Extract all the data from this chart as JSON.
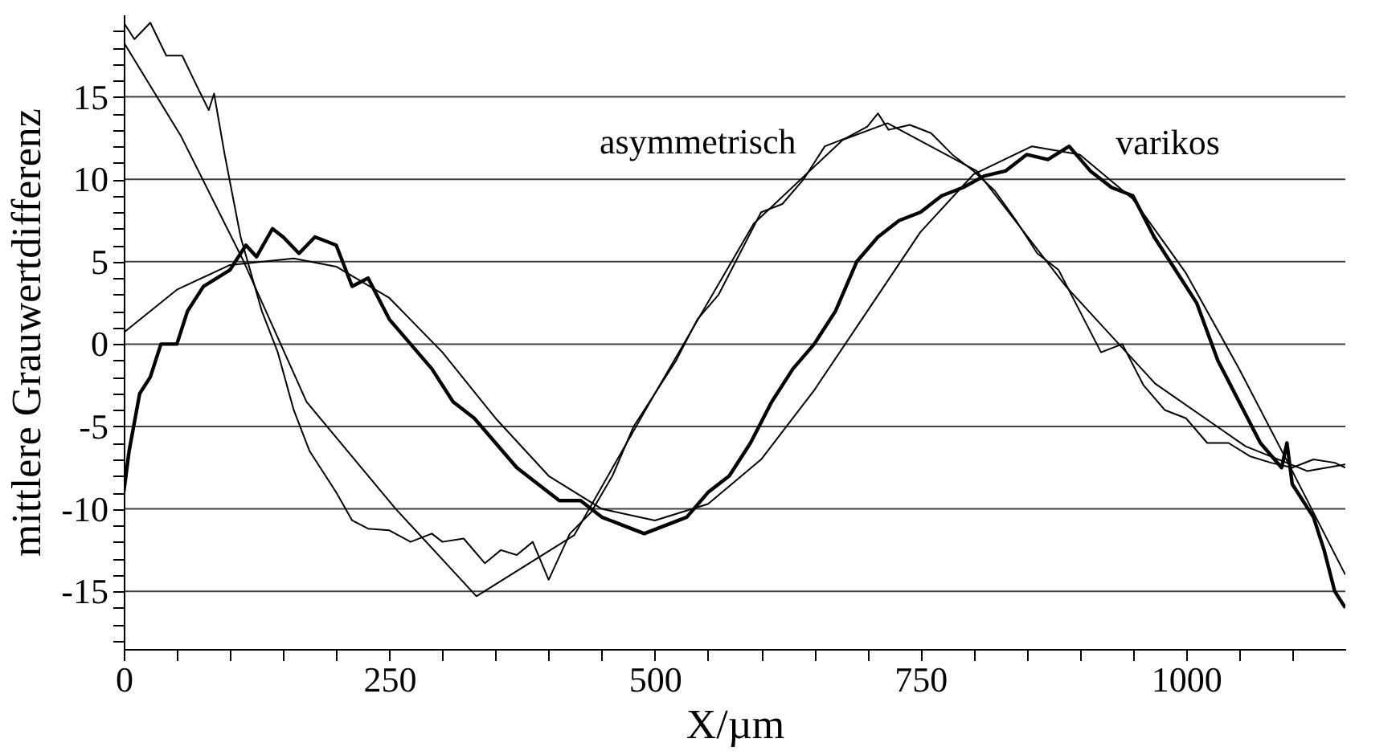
{
  "chart_data": {
    "type": "line",
    "xlabel": "X/µm",
    "ylabel": "mittlere Grauwertdifferenz",
    "xlim": [
      0,
      1150
    ],
    "ylim": [
      -18.5,
      20
    ],
    "xticks": [
      0,
      {
        "value": 50,
        "label": null
      },
      {
        "value": 100,
        "label": null
      },
      {
        "value": 150,
        "label": null
      },
      {
        "value": 200,
        "label": null
      },
      250,
      {
        "value": 300,
        "label": null
      },
      {
        "value": 350,
        "label": null
      },
      {
        "value": 400,
        "label": null
      },
      {
        "value": 450,
        "label": null
      },
      500,
      {
        "value": 550,
        "label": null
      },
      {
        "value": 600,
        "label": null
      },
      {
        "value": 650,
        "label": null
      },
      {
        "value": 700,
        "label": null
      },
      750,
      {
        "value": 800,
        "label": null
      },
      {
        "value": 850,
        "label": null
      },
      {
        "value": 900,
        "label": null
      },
      {
        "value": 950,
        "label": null
      },
      1000,
      {
        "value": 1050,
        "label": null
      },
      {
        "value": 1100,
        "label": null
      }
    ],
    "yticks": [
      {
        "value": -18,
        "label": null
      },
      {
        "value": -17,
        "label": null
      },
      {
        "value": -16,
        "label": null
      },
      -15,
      {
        "value": -14,
        "label": null
      },
      {
        "value": -13,
        "label": null
      },
      {
        "value": -12,
        "label": null
      },
      {
        "value": -11,
        "label": null
      },
      -10,
      {
        "value": -9,
        "label": null
      },
      {
        "value": -8,
        "label": null
      },
      {
        "value": -7,
        "label": null
      },
      {
        "value": -6,
        "label": null
      },
      -5,
      {
        "value": -4,
        "label": null
      },
      {
        "value": -3,
        "label": null
      },
      {
        "value": -2,
        "label": null
      },
      {
        "value": -1,
        "label": null
      },
      0,
      {
        "value": 1,
        "label": null
      },
      {
        "value": 2,
        "label": null
      },
      {
        "value": 3,
        "label": null
      },
      {
        "value": 4,
        "label": null
      },
      5,
      {
        "value": 6,
        "label": null
      },
      {
        "value": 7,
        "label": null
      },
      {
        "value": 8,
        "label": null
      },
      {
        "value": 9,
        "label": null
      },
      10,
      {
        "value": 11,
        "label": null
      },
      {
        "value": 12,
        "label": null
      },
      {
        "value": 13,
        "label": null
      },
      {
        "value": 14,
        "label": null
      },
      15,
      {
        "value": 16,
        "label": null
      },
      {
        "value": 17,
        "label": null
      },
      {
        "value": 18,
        "label": null
      },
      {
        "value": 19,
        "label": null
      }
    ],
    "grid": "y",
    "marker": "none",
    "line_style": "solid",
    "series": [
      {
        "name": "asymmetrisch",
        "color": "#000000",
        "x": [
          0,
          10,
          25,
          40,
          55,
          70,
          80,
          85,
          95,
          110,
          130,
          145,
          160,
          175,
          190,
          200,
          215,
          230,
          250,
          270,
          290,
          300,
          320,
          340,
          355,
          370,
          385,
          400,
          420,
          440,
          460,
          480,
          500,
          520,
          540,
          560,
          580,
          600,
          620,
          640,
          660,
          680,
          700,
          710,
          720,
          740,
          760,
          780,
          800,
          820,
          840,
          860,
          880,
          900,
          920,
          940,
          960,
          980,
          1000,
          1020,
          1040,
          1060,
          1080,
          1100,
          1120,
          1140,
          1150
        ],
        "values": [
          19.5,
          18.5,
          19.5,
          17.5,
          17.5,
          15.5,
          14.2,
          15.2,
          11.5,
          6.5,
          2,
          -0.5,
          -4,
          -6.5,
          -8,
          -9,
          -10.7,
          -11.2,
          -11.3,
          -12,
          -11.5,
          -12,
          -11.8,
          -13.3,
          -12.5,
          -12.8,
          -12,
          -14.3,
          -11.5,
          -10.2,
          -8,
          -5,
          -3,
          -1,
          1.5,
          3,
          5.5,
          8,
          8.5,
          10,
          12,
          12.5,
          13.2,
          14,
          13,
          13.3,
          12.8,
          11.5,
          10.5,
          9.3,
          7.5,
          5.5,
          4.5,
          2,
          -0.5,
          0,
          -2.5,
          -4,
          -4.5,
          -6,
          -6,
          -6.8,
          -7.2,
          -7.5,
          -7,
          -7.2,
          -7.5
        ]
      },
      {
        "color": "#000000",
        "x": [
          0,
          54,
          113,
          172,
          256,
          332,
          424,
          500,
          593,
          677,
          719,
          803,
          887,
          971,
          1056,
          1114,
          1150
        ],
        "values": [
          18.3,
          12.6,
          5,
          -3.5,
          -10,
          -15.3,
          -11.6,
          -3,
          7.3,
          12.4,
          13.4,
          10.5,
          3.5,
          -2.4,
          -6.2,
          -7.7,
          -7.3
        ]
      },
      {
        "name": "varikos",
        "color": "#000000",
        "x": [
          0,
          5,
          15,
          25,
          35,
          50,
          60,
          75,
          100,
          115,
          125,
          140,
          150,
          165,
          180,
          200,
          215,
          230,
          250,
          270,
          290,
          310,
          330,
          350,
          370,
          390,
          410,
          430,
          450,
          470,
          490,
          510,
          530,
          550,
          570,
          590,
          610,
          630,
          650,
          670,
          690,
          710,
          730,
          750,
          770,
          790,
          810,
          830,
          850,
          870,
          890,
          910,
          930,
          950,
          970,
          990,
          1010,
          1030,
          1050,
          1070,
          1090,
          1095,
          1100,
          1120,
          1130,
          1140,
          1150
        ],
        "values": [
          -9,
          -6.5,
          -3,
          -2,
          0,
          0,
          2,
          3.5,
          4.5,
          6,
          5.3,
          7,
          6.5,
          5.5,
          6.5,
          6,
          3.5,
          4,
          1.5,
          0,
          -1.5,
          -3.5,
          -4.5,
          -6,
          -7.5,
          -8.5,
          -9.5,
          -9.5,
          -10.5,
          -11,
          -11.5,
          -11,
          -10.5,
          -9,
          -8,
          -6,
          -3.5,
          -1.5,
          0,
          2,
          5,
          6.5,
          7.5,
          8,
          9,
          9.5,
          10.2,
          10.5,
          11.5,
          11.2,
          12,
          10.5,
          9.5,
          9,
          6.5,
          4.5,
          2.5,
          -1,
          -3.5,
          -6,
          -7.5,
          -6,
          -8.5,
          -10.5,
          -12.5,
          -15,
          -16
        ]
      },
      {
        "color": "#000000",
        "x": [
          0,
          50,
          100,
          160,
          200,
          250,
          300,
          350,
          400,
          450,
          500,
          550,
          600,
          650,
          700,
          750,
          800,
          855,
          900,
          950,
          1000,
          1050,
          1100,
          1150
        ],
        "values": [
          0.7,
          3.3,
          4.8,
          5.2,
          4.7,
          2.8,
          -0.5,
          -4.5,
          -8,
          -10,
          -10.7,
          -9.7,
          -7,
          -2.8,
          2,
          6.8,
          10.3,
          12,
          11.5,
          8.8,
          4.3,
          -1.5,
          -7.7,
          -14
        ]
      }
    ]
  }
}
